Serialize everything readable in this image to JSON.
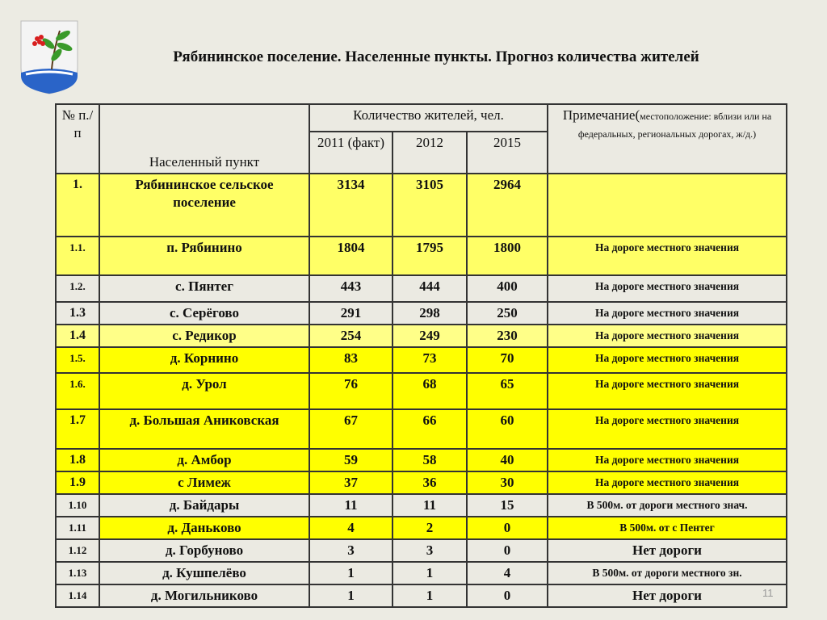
{
  "title": "Рябининское поселение. Населенные пункты. Прогноз количества жителей",
  "header": {
    "num": "№ п./п",
    "place": "Населенный пункт",
    "count": "Количество жителей, чел.",
    "y2011": "2011 (факт)",
    "y2012": "2012",
    "y2015": "2015",
    "note_main": "Примечание(",
    "note_small": "местоположение: вблизи или на федеральных, региональных дорогах, ж/д.)"
  },
  "rows": [
    {
      "n": "1.",
      "name": "Рябининское сельское поселение",
      "a": "3134",
      "b": "3105",
      "c": "2964",
      "note": ""
    },
    {
      "n": "1.1.",
      "name": "п. Рябинино",
      "a": "1804",
      "b": "1795",
      "c": "1800",
      "note": "На дороге местного значения"
    },
    {
      "n": "1.2.",
      "name": "с. Пянтег",
      "a": "443",
      "b": "444",
      "c": "400",
      "note": "На дороге местного значения"
    },
    {
      "n": "1.3",
      "name": "с. Серёгово",
      "a": "291",
      "b": "298",
      "c": "250",
      "note": "На дороге местного значения"
    },
    {
      "n": "1.4",
      "name": "с. Редикор",
      "a": "254",
      "b": "249",
      "c": "230",
      "note": "На дороге местного значения"
    },
    {
      "n": "1.5.",
      "name": "д. Корнино",
      "a": "83",
      "b": "73",
      "c": "70",
      "note": "На дороге местного значения"
    },
    {
      "n": "1.6.",
      "name": "д. Урол",
      "a": "76",
      "b": "68",
      "c": "65",
      "note": "На дороге местного значения"
    },
    {
      "n": "1.7",
      "name": "д. Большая Аниковская",
      "a": "67",
      "b": "66",
      "c": "60",
      "note": "На дороге местного значения"
    },
    {
      "n": "1.8",
      "name": "д. Амбор",
      "a": "59",
      "b": "58",
      "c": "40",
      "note": "На дороге местного значения"
    },
    {
      "n": "1.9",
      "name": "с Лимеж",
      "a": "37",
      "b": "36",
      "c": "30",
      "note": "На дороге местного значения"
    },
    {
      "n": "1.10",
      "name": "д. Байдары",
      "a": "11",
      "b": "11",
      "c": "15",
      "note": "В 500м. от дороги местного знач."
    },
    {
      "n": "1.11",
      "name": "д. Даньково",
      "a": "4",
      "b": "2",
      "c": "0",
      "note": "В 500м. от с Пентег"
    },
    {
      "n": "1.12",
      "name": "д. Горбуново",
      "a": "3",
      "b": "3",
      "c": "0",
      "note": "Нет дороги"
    },
    {
      "n": "1.13",
      "name": "д. Кушпелёво",
      "a": "1",
      "b": "1",
      "c": "4",
      "note": "В 500м. от дороги местного зн."
    },
    {
      "n": "1.14",
      "name": "д. Могильниково",
      "a": "1",
      "b": "1",
      "c": "0",
      "note": "Нет дороги"
    }
  ],
  "page_number": "11",
  "colors": {
    "yellow": "#ffff00",
    "light_yellow": "#ffff66",
    "gray": "#ebeae2",
    "background": "#ecebe3"
  }
}
